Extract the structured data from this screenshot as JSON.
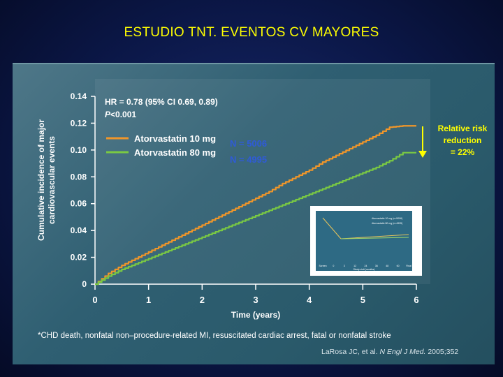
{
  "slide": {
    "title": "ESTUDIO TNT. EVENTOS CV MAYORES",
    "footnote": "*CHD death, nonfatal non–procedure-related MI, resuscitated cardiac arrest, fatal or nonfatal stroke",
    "citation": {
      "authors": "LaRosa JC, et al.",
      "journal": "N Engl J Med.",
      "year_vol": "2005;352"
    }
  },
  "colors": {
    "slide_bg": "#0b1747",
    "title": "#ffff00",
    "panel": "#2f5f72",
    "series_10mg": "#f0962a",
    "series_80mg": "#7ac943",
    "n_label": "#2f5bd8",
    "annotation": "#ffff00"
  },
  "chart_data": {
    "type": "line",
    "ylabel_line1": "Cumulative incidence of major",
    "ylabel_line2": "cardiovascular events",
    "xlabel": "Time (years)",
    "xlim": [
      0,
      6
    ],
    "ylim": [
      0,
      0.14
    ],
    "x_ticks": [
      "0",
      "1",
      "2",
      "3",
      "4",
      "5",
      "6"
    ],
    "y_ticks": [
      "0",
      "0.02",
      "0.04",
      "0.06",
      "0.08",
      "0.10",
      "0.12",
      "0.14"
    ],
    "hr_text": "HR = 0.78 (95% CI 0.69, 0.89)",
    "p_italic": "P",
    "p_rest": "<0.001",
    "series": [
      {
        "name": "Atorvastatin 10 mg",
        "n_label": "N = 5006",
        "points": [
          [
            0,
            0
          ],
          [
            0.25,
            0.008
          ],
          [
            0.5,
            0.014
          ],
          [
            0.75,
            0.019
          ],
          [
            1,
            0.024
          ],
          [
            1.25,
            0.029
          ],
          [
            1.5,
            0.034
          ],
          [
            1.75,
            0.039
          ],
          [
            2,
            0.044
          ],
          [
            2.25,
            0.049
          ],
          [
            2.5,
            0.054
          ],
          [
            2.75,
            0.059
          ],
          [
            3,
            0.064
          ],
          [
            3.25,
            0.069
          ],
          [
            3.5,
            0.075
          ],
          [
            3.75,
            0.08
          ],
          [
            4,
            0.085
          ],
          [
            4.25,
            0.091
          ],
          [
            4.5,
            0.096
          ],
          [
            4.75,
            0.101
          ],
          [
            5,
            0.106
          ],
          [
            5.25,
            0.111
          ],
          [
            5.5,
            0.117
          ],
          [
            5.75,
            0.118
          ],
          [
            6,
            0.118
          ]
        ]
      },
      {
        "name": "Atorvastatin 80 mg",
        "n_label": "N = 4995",
        "points": [
          [
            0,
            0
          ],
          [
            0.25,
            0.006
          ],
          [
            0.5,
            0.011
          ],
          [
            0.75,
            0.015
          ],
          [
            1,
            0.019
          ],
          [
            1.25,
            0.023
          ],
          [
            1.5,
            0.027
          ],
          [
            1.75,
            0.031
          ],
          [
            2,
            0.035
          ],
          [
            2.25,
            0.039
          ],
          [
            2.5,
            0.043
          ],
          [
            2.75,
            0.047
          ],
          [
            3,
            0.051
          ],
          [
            3.25,
            0.055
          ],
          [
            3.5,
            0.059
          ],
          [
            3.75,
            0.063
          ],
          [
            4,
            0.067
          ],
          [
            4.25,
            0.071
          ],
          [
            4.5,
            0.075
          ],
          [
            4.75,
            0.079
          ],
          [
            5,
            0.083
          ],
          [
            5.25,
            0.087
          ],
          [
            5.5,
            0.092
          ],
          [
            5.75,
            0.098
          ],
          [
            6,
            0.098
          ]
        ]
      }
    ],
    "annotation": {
      "line1": "Relative risk",
      "line2": "reduction",
      "line3": "= 22%"
    },
    "inset": {
      "legend_10mg": "Atorvastatin 10 mg (n=5006)",
      "legend_80mg": "Atorvastatin 80 mg (n=4995)",
      "xlabel": "Study visit (months)",
      "x_ticks": [
        "Screen",
        "0",
        "3",
        "12",
        "24",
        "36",
        "48",
        "60",
        "Final"
      ]
    }
  }
}
